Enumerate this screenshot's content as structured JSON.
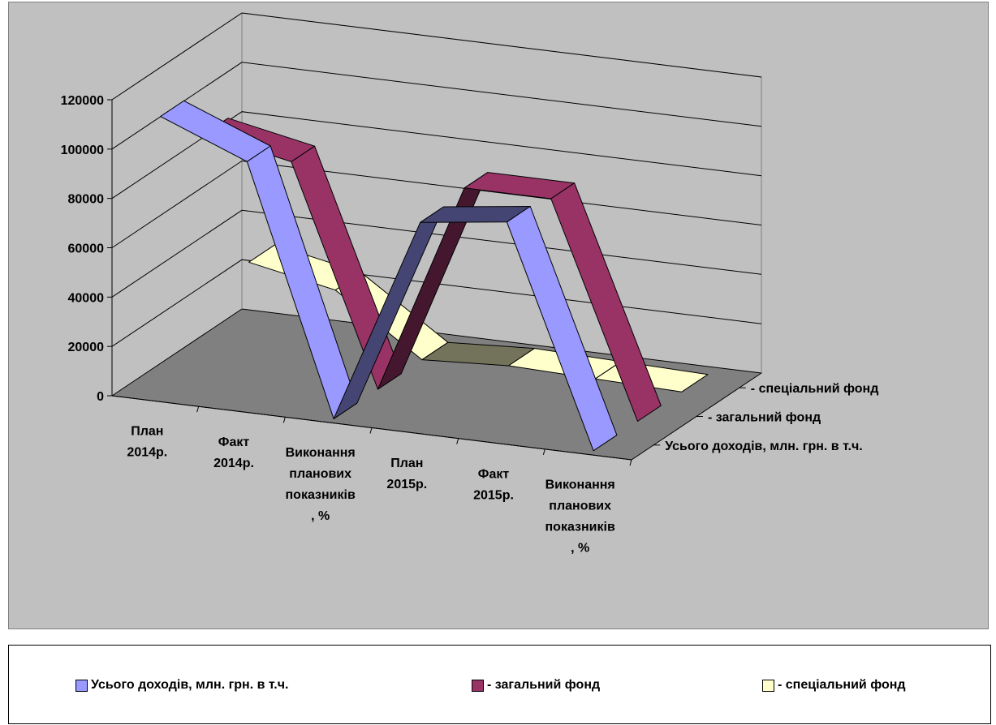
{
  "chart_data": {
    "type": "line",
    "style": "3d",
    "categories": [
      [
        "План",
        "2014р."
      ],
      [
        "Факт",
        "2014р."
      ],
      [
        "Виконання",
        "планових",
        "показників",
        ", %"
      ],
      [
        "План",
        "2015р."
      ],
      [
        "Факт",
        "2015р."
      ],
      [
        "Виконання",
        "планових",
        "показників",
        ", %"
      ]
    ],
    "series": [
      {
        "name": "Усього доходів, млн. грн. в т.ч.",
        "values": [
          114000,
          100000,
          90,
          84000,
          88500,
          105
        ],
        "color": "#9999ff"
      },
      {
        "name": "- загальний фонд",
        "values": [
          95000,
          88000,
          92,
          86000,
          86000,
          98
        ],
        "color": "#993366"
      },
      {
        "name": "- спеціальний фонд",
        "values": [
          31000,
          24000,
          78,
          2000,
          1000,
          42
        ],
        "color": "#ffffcc"
      }
    ],
    "yticks": [
      "0",
      "20000",
      "40000",
      "60000",
      "80000",
      "100000",
      "120000"
    ],
    "ylim": [
      0,
      120000
    ],
    "grid": true,
    "legend_position": "bottom"
  }
}
